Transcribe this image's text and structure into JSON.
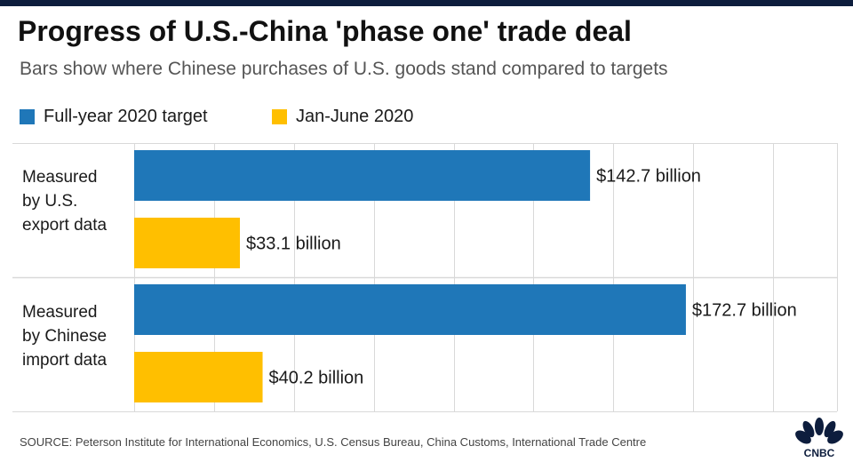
{
  "title": "Progress of U.S.-China 'phase one' trade deal",
  "subtitle": "Bars show where Chinese purchases of U.S. goods stand compared to targets",
  "source": "SOURCE: Peterson Institute for International Economics, U.S. Census Bureau, China Customs, International Trade Centre",
  "logo_text": "CNBC",
  "colors": {
    "target": "#1f77b8",
    "actual": "#ffbf00",
    "grid": "#d9d9d9",
    "top_bar": "#0d1d3d"
  },
  "chart_data": {
    "type": "bar",
    "orientation": "horizontal",
    "categories": [
      [
        "Measured",
        "by U.S.",
        "export data"
      ],
      [
        "Measured",
        "by Chinese",
        "import data"
      ]
    ],
    "series": [
      {
        "name": "Full-year 2020 target",
        "values": [
          142.7,
          172.7
        ],
        "labels": [
          "$142.7 billion",
          "$172.7 billion"
        ]
      },
      {
        "name": "Jan-June 2020",
        "values": [
          33.1,
          40.2
        ],
        "labels": [
          "$33.1 billion",
          "$40.2 billion"
        ]
      }
    ],
    "xlim": [
      0,
      220
    ],
    "grid": true,
    "legend": "top-left"
  }
}
